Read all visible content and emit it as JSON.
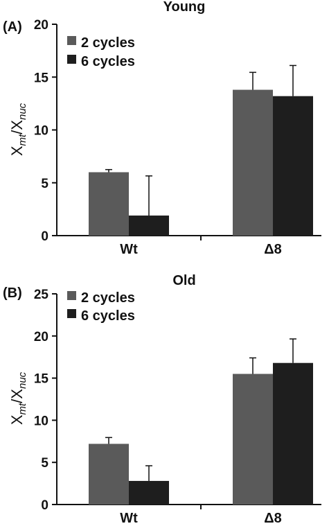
{
  "chart_data": [
    {
      "type": "bar",
      "panel": "(A)",
      "title": "Young",
      "categories": [
        "Wt",
        "Δ8"
      ],
      "series": [
        {
          "name": "2 cycles",
          "values": [
            6.0,
            13.8
          ],
          "error": [
            0.25,
            1.65
          ]
        },
        {
          "name": "6 cycles",
          "values": [
            1.9,
            13.2
          ],
          "error": [
            3.75,
            2.9
          ]
        }
      ],
      "ylabel_main": "X",
      "ylabel_sub1": "mt",
      "ylabel_sep": "/X",
      "ylabel_sub2": "nuc",
      "ylim": [
        0,
        20
      ],
      "yticks": [
        0,
        5,
        10,
        15,
        20
      ],
      "legend": "top-left",
      "grid": false,
      "colors": [
        "#5a5a5a",
        "#1e1e1e"
      ]
    },
    {
      "type": "bar",
      "panel": "(B)",
      "title": "Old",
      "categories": [
        "Wt",
        "Δ8"
      ],
      "series": [
        {
          "name": "2 cycles",
          "values": [
            7.2,
            15.5
          ],
          "error": [
            0.75,
            1.9
          ]
        },
        {
          "name": "6 cycles",
          "values": [
            2.8,
            16.8
          ],
          "error": [
            1.8,
            2.85
          ]
        }
      ],
      "ylabel_main": "X",
      "ylabel_sub1": "mt",
      "ylabel_sep": "/X",
      "ylabel_sub2": "nuc",
      "ylim": [
        0,
        25
      ],
      "yticks": [
        0,
        5,
        10,
        15,
        20,
        25
      ],
      "legend": "top-left",
      "grid": false,
      "colors": [
        "#5a5a5a",
        "#1e1e1e"
      ]
    }
  ]
}
